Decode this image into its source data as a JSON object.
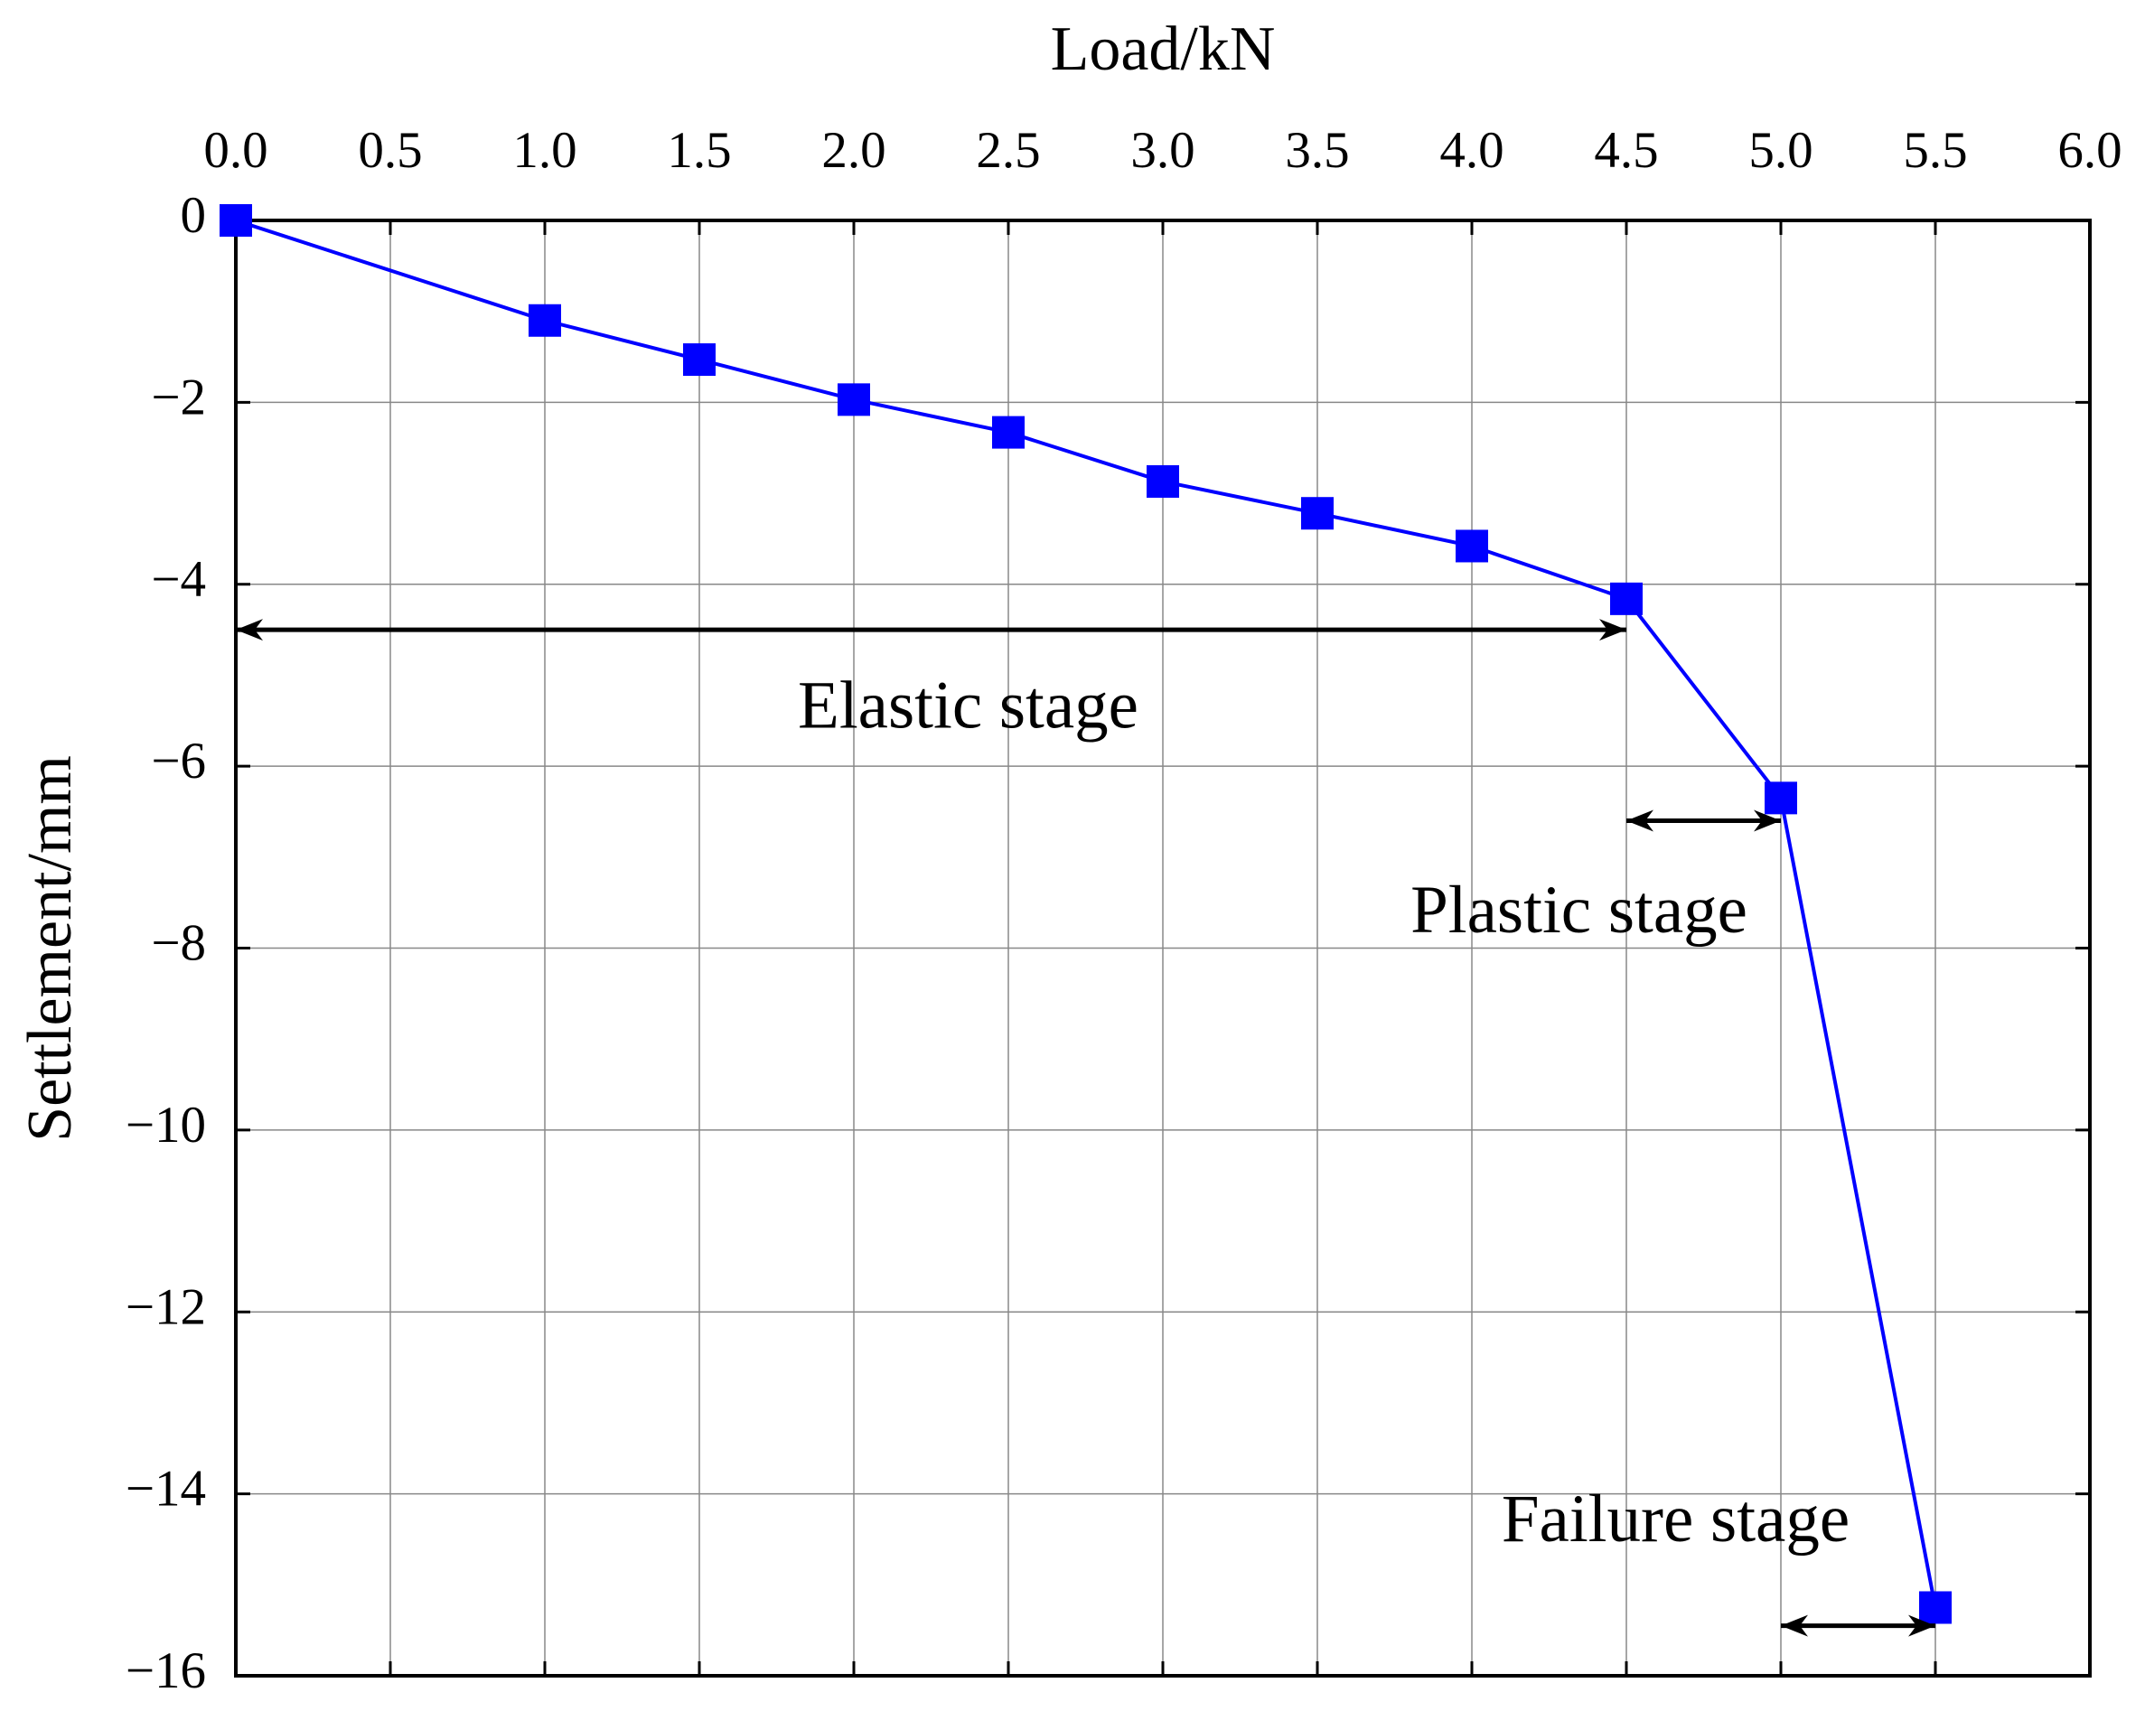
{
  "chart_data": {
    "type": "line",
    "x_label": "Load/kN",
    "y_label": "Settlement/mm",
    "x": [
      0.0,
      1.0,
      1.5,
      2.0,
      2.5,
      3.0,
      3.5,
      4.0,
      4.5,
      5.0,
      5.5
    ],
    "series": [
      {
        "color": "#0000ff",
        "marker": "square",
        "values": [
          0,
          -1.1,
          -1.53,
          -1.97,
          -2.33,
          -2.87,
          -3.22,
          -3.58,
          -4.16,
          -6.35,
          -15.25
        ]
      }
    ],
    "xlim": [
      0,
      6
    ],
    "xticks": [
      {
        "value": 0,
        "label": "0.0"
      },
      {
        "value": 0.5,
        "label": "0.5"
      },
      {
        "value": 1,
        "label": "1.0"
      },
      {
        "value": 1.5,
        "label": "1.5"
      },
      {
        "value": 2,
        "label": "2.0"
      },
      {
        "value": 2.5,
        "label": "2.5"
      },
      {
        "value": 3,
        "label": "3.0"
      },
      {
        "value": 3.5,
        "label": "3.5"
      },
      {
        "value": 4,
        "label": "4.0"
      },
      {
        "value": 4.5,
        "label": "4.5"
      },
      {
        "value": 5,
        "label": "5.0"
      },
      {
        "value": 5.5,
        "label": "5.5"
      },
      {
        "value": 6,
        "label": "6.0"
      }
    ],
    "ylim": [
      -16,
      0
    ],
    "yticks": [
      0,
      {
        "value": -2,
        "label": "−2"
      },
      {
        "value": -4,
        "label": "−4"
      },
      {
        "value": -6,
        "label": "−6"
      },
      {
        "value": -8,
        "label": "−8"
      },
      {
        "value": -10,
        "label": "−10"
      },
      {
        "value": -12,
        "label": "−12"
      },
      {
        "value": -14,
        "label": "−14"
      },
      {
        "value": -16,
        "label": "−16"
      }
    ],
    "grid": true,
    "x_axis_position": "top",
    "annotations": [
      {
        "text": "Elastic stage",
        "x": [
          0,
          4.5
        ],
        "y": -4.5
      },
      {
        "text": "Plastic stage",
        "x": [
          4.5,
          5.0
        ],
        "y": -6.6
      },
      {
        "text": "Failure stage",
        "x": [
          5.0,
          5.5
        ],
        "y": -15.45
      }
    ]
  }
}
